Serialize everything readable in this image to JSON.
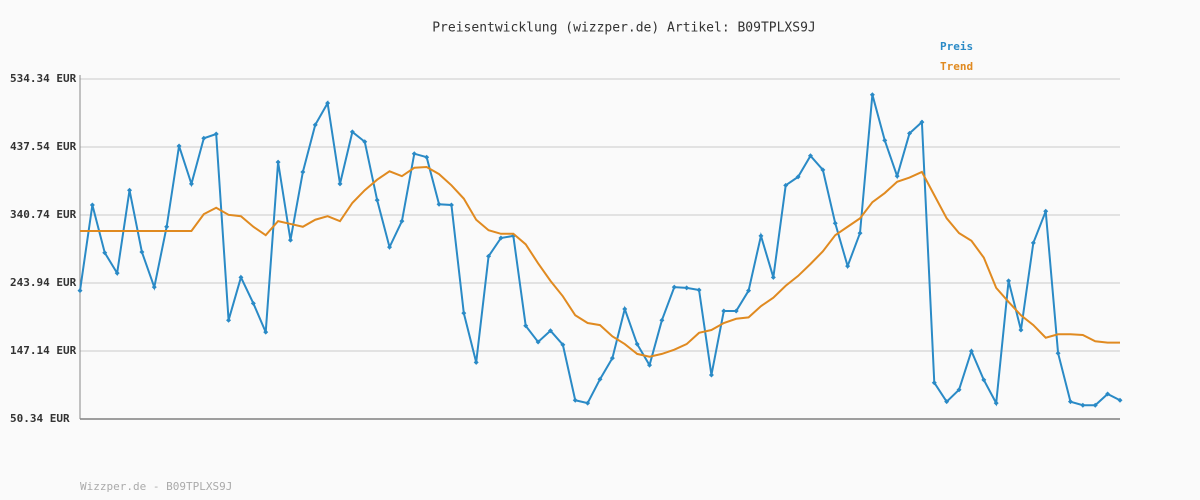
{
  "chart_data": {
    "type": "line",
    "title": "Preisentwicklung (wizzper.de) Artikel: B09TPLXS9J",
    "footer": "Wizzper.de - B09TPLXS9J",
    "ylim": [
      50.34,
      534.34
    ],
    "yticks": [
      {
        "value": 50.34,
        "label": "50.34 EUR"
      },
      {
        "value": 147.14,
        "label": "147.14 EUR"
      },
      {
        "value": 243.94,
        "label": "243.94 EUR"
      },
      {
        "value": 340.74,
        "label": "340.74 EUR"
      },
      {
        "value": 437.54,
        "label": "437.54 EUR"
      },
      {
        "value": 534.34,
        "label": "534.34 EUR"
      }
    ],
    "grid": true,
    "series": [
      {
        "name": "Preis",
        "color": "#2a8ac6",
        "markers": true,
        "values": [
          233,
          355,
          287,
          258,
          376,
          288,
          238,
          324,
          439,
          385,
          450,
          456,
          191,
          252,
          215,
          174,
          416,
          305,
          402,
          469,
          500,
          385,
          459,
          445,
          362,
          295,
          332,
          428,
          423,
          356,
          355,
          201,
          131,
          282,
          308,
          311,
          183,
          160,
          176,
          156,
          77,
          73,
          107,
          137,
          207,
          157,
          127,
          191,
          238,
          237,
          234,
          113,
          204,
          204,
          233,
          311,
          252,
          383,
          395,
          425,
          405,
          329,
          268,
          315,
          512,
          447,
          396,
          457,
          473,
          102,
          75,
          92,
          147,
          106,
          73,
          247,
          177,
          301,
          346,
          144,
          75,
          70,
          70,
          86,
          77
        ]
      },
      {
        "name": "Trend",
        "color": "#e08a20",
        "markers": false,
        "values": [
          318,
          318,
          318,
          318,
          318,
          318,
          318,
          318,
          318,
          318,
          342,
          351,
          341,
          339,
          324,
          312,
          332,
          328,
          324,
          334,
          339,
          332,
          358,
          376,
          391,
          403,
          396,
          408,
          409,
          399,
          383,
          364,
          334,
          319,
          314,
          314,
          299,
          272,
          247,
          225,
          198,
          187,
          184,
          168,
          157,
          143,
          139,
          143,
          149,
          157,
          173,
          177,
          187,
          193,
          195,
          211,
          223,
          240,
          254,
          271,
          289,
          312,
          324,
          336,
          359,
          372,
          388,
          394,
          402,
          369,
          336,
          315,
          304,
          280,
          237,
          217,
          198,
          184,
          166,
          171,
          171,
          170,
          161,
          159,
          159
        ]
      }
    ]
  }
}
